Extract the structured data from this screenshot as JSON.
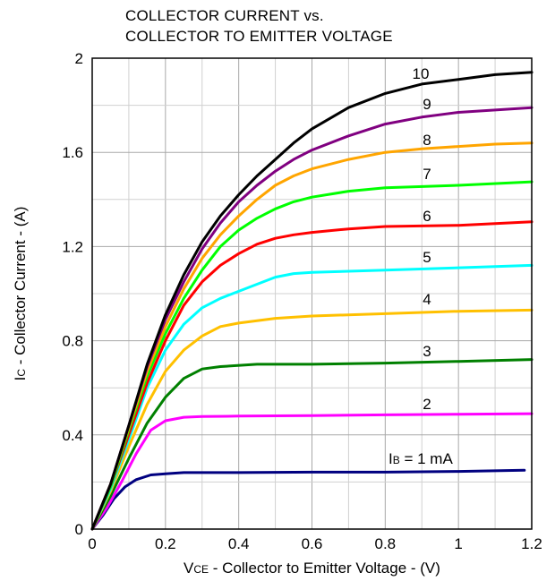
{
  "chart_data": {
    "type": "line",
    "title_line1": "COLLECTOR CURRENT vs.",
    "title_line2": "COLLECTOR TO EMITTER VOLTAGE",
    "xlabel_main": "V",
    "xlabel_sub": "CE",
    "xlabel_rest": " - Collector to Emitter Voltage - (V)",
    "ylabel_main": "I",
    "ylabel_sub": "C",
    "ylabel_rest": " - Collector Current - (A)",
    "xlim": [
      0,
      1.2
    ],
    "ylim": [
      0,
      2
    ],
    "x_ticks": [
      "0",
      "0.2",
      "0.4",
      "0.6",
      "0.8",
      "1",
      "1.2"
    ],
    "y_ticks": [
      "0",
      "0.4",
      "0.8",
      "1.2",
      "1.6",
      "2"
    ],
    "grid": true,
    "series": [
      {
        "name": "1",
        "label_main": "I",
        "label_sub": "B",
        "label_rest": " = 1 mA",
        "color": "#000080",
        "points": [
          [
            0,
            0
          ],
          [
            0.03,
            0.06
          ],
          [
            0.06,
            0.13
          ],
          [
            0.09,
            0.18
          ],
          [
            0.12,
            0.21
          ],
          [
            0.16,
            0.23
          ],
          [
            0.2,
            0.235
          ],
          [
            0.25,
            0.24
          ],
          [
            0.4,
            0.24
          ],
          [
            0.6,
            0.242
          ],
          [
            0.8,
            0.242
          ],
          [
            1.0,
            0.245
          ],
          [
            1.18,
            0.25
          ]
        ]
      },
      {
        "name": "2",
        "label": "2",
        "color": "#ff00ff",
        "points": [
          [
            0,
            0
          ],
          [
            0.04,
            0.09
          ],
          [
            0.08,
            0.2
          ],
          [
            0.12,
            0.32
          ],
          [
            0.16,
            0.42
          ],
          [
            0.2,
            0.46
          ],
          [
            0.25,
            0.475
          ],
          [
            0.3,
            0.478
          ],
          [
            0.4,
            0.48
          ],
          [
            0.6,
            0.482
          ],
          [
            0.8,
            0.485
          ],
          [
            1.0,
            0.488
          ],
          [
            1.2,
            0.49
          ]
        ]
      },
      {
        "name": "3",
        "label": "3",
        "color": "#008000",
        "points": [
          [
            0,
            0
          ],
          [
            0.05,
            0.14
          ],
          [
            0.1,
            0.3
          ],
          [
            0.15,
            0.45
          ],
          [
            0.2,
            0.56
          ],
          [
            0.25,
            0.64
          ],
          [
            0.3,
            0.68
          ],
          [
            0.35,
            0.69
          ],
          [
            0.45,
            0.7
          ],
          [
            0.6,
            0.7
          ],
          [
            0.8,
            0.705
          ],
          [
            1.0,
            0.712
          ],
          [
            1.2,
            0.72
          ]
        ]
      },
      {
        "name": "4",
        "label": "4",
        "color": "#ffc000",
        "points": [
          [
            0,
            0
          ],
          [
            0.05,
            0.16
          ],
          [
            0.1,
            0.35
          ],
          [
            0.15,
            0.53
          ],
          [
            0.2,
            0.67
          ],
          [
            0.25,
            0.76
          ],
          [
            0.3,
            0.82
          ],
          [
            0.35,
            0.86
          ],
          [
            0.4,
            0.875
          ],
          [
            0.5,
            0.895
          ],
          [
            0.6,
            0.905
          ],
          [
            0.8,
            0.915
          ],
          [
            1.0,
            0.925
          ],
          [
            1.2,
            0.93
          ]
        ]
      },
      {
        "name": "5",
        "label": "5",
        "color": "#00ffff",
        "points": [
          [
            0,
            0
          ],
          [
            0.05,
            0.17
          ],
          [
            0.1,
            0.38
          ],
          [
            0.15,
            0.6
          ],
          [
            0.2,
            0.76
          ],
          [
            0.25,
            0.87
          ],
          [
            0.3,
            0.94
          ],
          [
            0.35,
            0.98
          ],
          [
            0.4,
            1.01
          ],
          [
            0.45,
            1.04
          ],
          [
            0.5,
            1.07
          ],
          [
            0.55,
            1.085
          ],
          [
            0.6,
            1.09
          ],
          [
            0.8,
            1.1
          ],
          [
            1.0,
            1.11
          ],
          [
            1.2,
            1.12
          ]
        ]
      },
      {
        "name": "6",
        "label": "6",
        "color": "#ff0000",
        "points": [
          [
            0,
            0
          ],
          [
            0.05,
            0.18
          ],
          [
            0.1,
            0.4
          ],
          [
            0.15,
            0.62
          ],
          [
            0.2,
            0.8
          ],
          [
            0.25,
            0.95
          ],
          [
            0.3,
            1.05
          ],
          [
            0.35,
            1.12
          ],
          [
            0.4,
            1.17
          ],
          [
            0.45,
            1.21
          ],
          [
            0.5,
            1.235
          ],
          [
            0.55,
            1.25
          ],
          [
            0.6,
            1.26
          ],
          [
            0.7,
            1.275
          ],
          [
            0.8,
            1.285
          ],
          [
            1.0,
            1.29
          ],
          [
            1.2,
            1.305
          ]
        ]
      },
      {
        "name": "7",
        "label": "7",
        "color": "#00ff00",
        "points": [
          [
            0,
            0
          ],
          [
            0.05,
            0.18
          ],
          [
            0.1,
            0.42
          ],
          [
            0.15,
            0.65
          ],
          [
            0.2,
            0.83
          ],
          [
            0.25,
            0.98
          ],
          [
            0.3,
            1.1
          ],
          [
            0.35,
            1.2
          ],
          [
            0.4,
            1.27
          ],
          [
            0.45,
            1.32
          ],
          [
            0.5,
            1.36
          ],
          [
            0.55,
            1.39
          ],
          [
            0.6,
            1.41
          ],
          [
            0.7,
            1.435
          ],
          [
            0.8,
            1.45
          ],
          [
            1.0,
            1.46
          ],
          [
            1.2,
            1.475
          ]
        ]
      },
      {
        "name": "8",
        "label": "8",
        "color": "#ffa500",
        "points": [
          [
            0,
            0
          ],
          [
            0.05,
            0.19
          ],
          [
            0.1,
            0.43
          ],
          [
            0.15,
            0.67
          ],
          [
            0.2,
            0.86
          ],
          [
            0.25,
            1.02
          ],
          [
            0.3,
            1.15
          ],
          [
            0.35,
            1.25
          ],
          [
            0.4,
            1.33
          ],
          [
            0.45,
            1.4
          ],
          [
            0.5,
            1.46
          ],
          [
            0.55,
            1.5
          ],
          [
            0.6,
            1.53
          ],
          [
            0.7,
            1.57
          ],
          [
            0.8,
            1.6
          ],
          [
            0.9,
            1.615
          ],
          [
            1.0,
            1.625
          ],
          [
            1.1,
            1.635
          ],
          [
            1.2,
            1.64
          ]
        ]
      },
      {
        "name": "9",
        "label": "9",
        "color": "#800080",
        "points": [
          [
            0,
            0
          ],
          [
            0.05,
            0.19
          ],
          [
            0.1,
            0.44
          ],
          [
            0.15,
            0.69
          ],
          [
            0.2,
            0.89
          ],
          [
            0.25,
            1.05
          ],
          [
            0.3,
            1.19
          ],
          [
            0.35,
            1.3
          ],
          [
            0.4,
            1.39
          ],
          [
            0.45,
            1.46
          ],
          [
            0.5,
            1.52
          ],
          [
            0.55,
            1.57
          ],
          [
            0.6,
            1.61
          ],
          [
            0.7,
            1.67
          ],
          [
            0.8,
            1.72
          ],
          [
            0.9,
            1.75
          ],
          [
            1.0,
            1.77
          ],
          [
            1.1,
            1.78
          ],
          [
            1.2,
            1.79
          ]
        ]
      },
      {
        "name": "10",
        "label": "10",
        "color": "#000000",
        "points": [
          [
            0,
            0
          ],
          [
            0.05,
            0.19
          ],
          [
            0.1,
            0.44
          ],
          [
            0.15,
            0.7
          ],
          [
            0.2,
            0.91
          ],
          [
            0.25,
            1.08
          ],
          [
            0.3,
            1.22
          ],
          [
            0.35,
            1.33
          ],
          [
            0.4,
            1.42
          ],
          [
            0.45,
            1.5
          ],
          [
            0.5,
            1.57
          ],
          [
            0.55,
            1.64
          ],
          [
            0.6,
            1.7
          ],
          [
            0.7,
            1.79
          ],
          [
            0.8,
            1.85
          ],
          [
            0.9,
            1.89
          ],
          [
            1.0,
            1.91
          ],
          [
            1.1,
            1.93
          ],
          [
            1.2,
            1.94
          ]
        ]
      }
    ]
  }
}
